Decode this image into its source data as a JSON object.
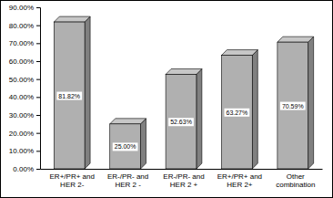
{
  "chart_data": {
    "type": "bar",
    "categories": [
      "ER+/PR+ and HER 2-",
      "ER-/PR- and HER 2 -",
      "ER-/PR- and HER 2 +",
      "ER+/PR+ and HER 2+",
      "Other combination"
    ],
    "values": [
      81.82,
      25.0,
      52.63,
      63.27,
      70.59
    ],
    "value_labels": [
      "81.82%",
      "25.00%",
      "52.63%",
      "63.27%",
      "70.59%"
    ],
    "color": "#b0b0b0",
    "ylim": [
      0,
      90
    ],
    "yticks": [
      {
        "value": 0,
        "label": "0.00%"
      },
      {
        "value": 10,
        "label": "10.00%"
      },
      {
        "value": 20,
        "label": "20.00%"
      },
      {
        "value": 30,
        "label": "30.00%"
      },
      {
        "value": 40,
        "label": "40.00%"
      },
      {
        "value": 50,
        "label": "50.00%"
      },
      {
        "value": 60,
        "label": "60.00%"
      },
      {
        "value": 70,
        "label": "70.00%"
      },
      {
        "value": 80,
        "label": "80.00%"
      },
      {
        "value": 90,
        "label": "90.00%"
      }
    ],
    "grid": false,
    "data_labels": true
  }
}
